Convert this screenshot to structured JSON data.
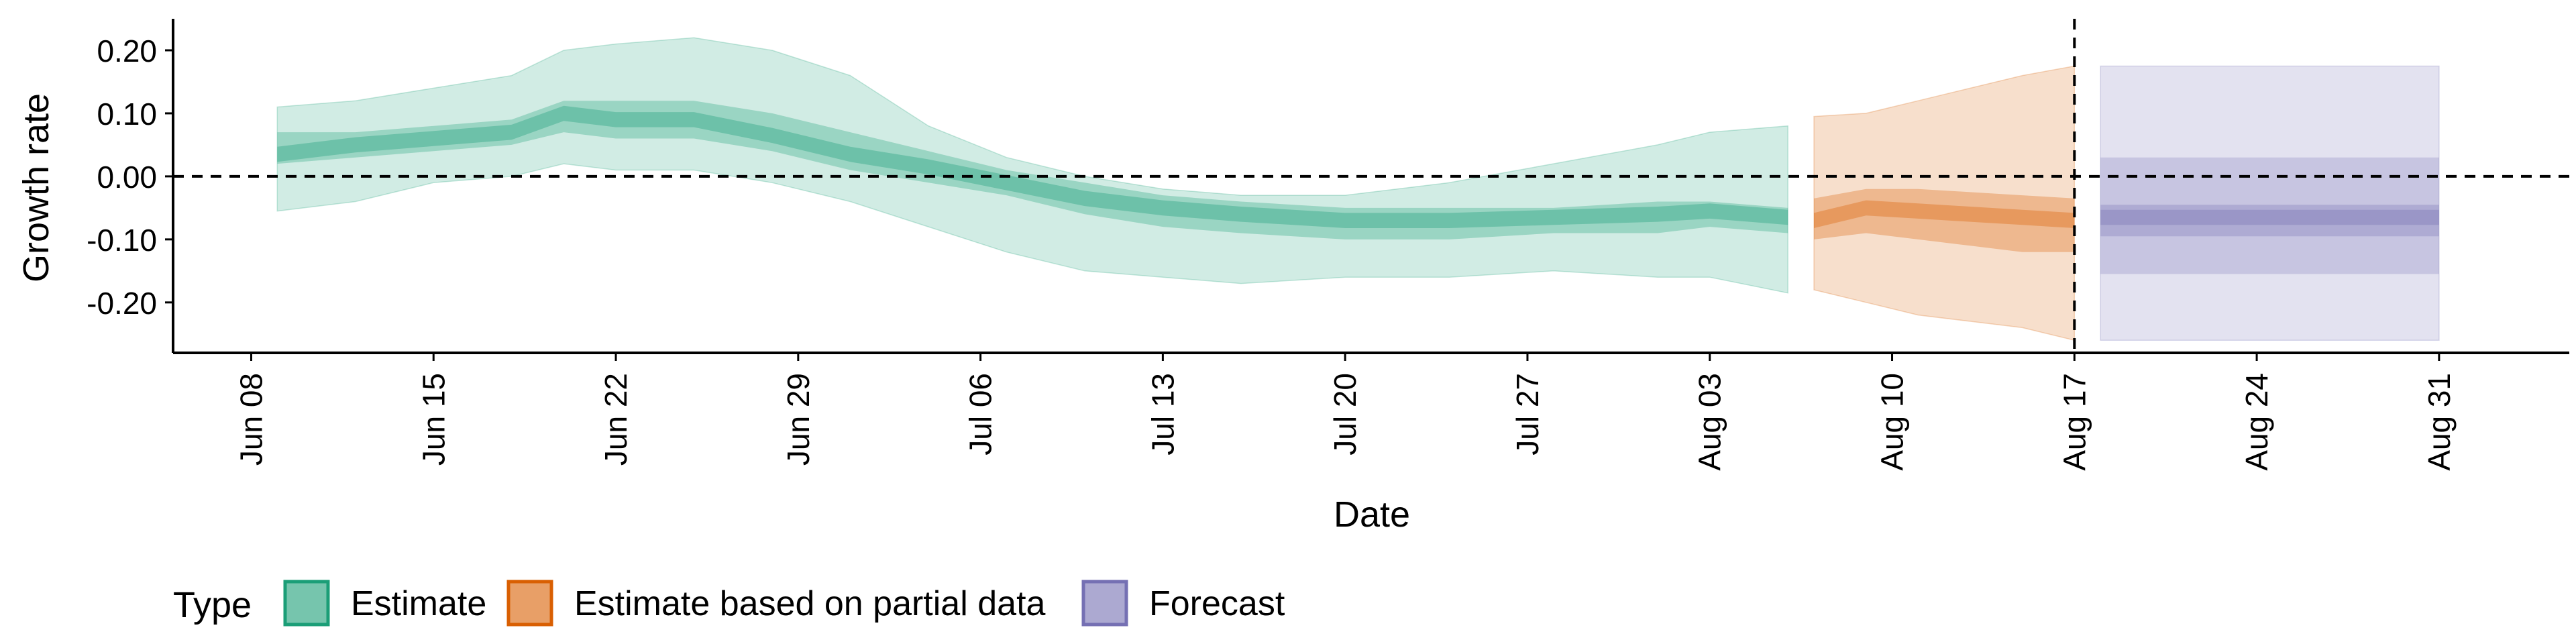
{
  "chart_data": {
    "type": "area",
    "xlabel": "Date",
    "ylabel": "Growth rate",
    "x_ticks": [
      "2020-06-08",
      "2020-06-15",
      "2020-06-22",
      "2020-06-29",
      "2020-07-06",
      "2020-07-13",
      "2020-07-20",
      "2020-07-27",
      "2020-08-03",
      "2020-08-10",
      "2020-08-17",
      "2020-08-24",
      "2020-08-31"
    ],
    "x_tick_labels": [
      "Jun 08",
      "Jun 15",
      "Jun 22",
      "Jun 29",
      "Jul 06",
      "Jul 13",
      "Jul 20",
      "Jul 27",
      "Aug 03",
      "Aug 10",
      "Aug 17",
      "Aug 24",
      "Aug 31"
    ],
    "xlim": [
      "2020-06-05",
      "2020-09-05"
    ],
    "y_ticks": [
      -0.2,
      -0.1,
      0.0,
      0.1,
      0.2
    ],
    "y_tick_labels": [
      "-0.20",
      "-0.10",
      "0.00",
      "0.10",
      "0.20"
    ],
    "ylim": [
      -0.28,
      0.25
    ],
    "hline": 0.0,
    "vline": "2020-08-17",
    "legend": {
      "title": "Type",
      "position": "bottom-left",
      "items": [
        {
          "label": "Estimate",
          "color": "#1b9e77"
        },
        {
          "label": "Estimate based on partial data",
          "color": "#d95f02"
        },
        {
          "label": "Forecast",
          "color": "#7570b3"
        }
      ]
    },
    "series": [
      {
        "name": "Estimate",
        "color": "#1b9e77",
        "x": [
          "2020-06-09",
          "2020-06-12",
          "2020-06-15",
          "2020-06-18",
          "2020-06-20",
          "2020-06-22",
          "2020-06-25",
          "2020-06-28",
          "2020-07-01",
          "2020-07-04",
          "2020-07-07",
          "2020-07-10",
          "2020-07-13",
          "2020-07-16",
          "2020-07-20",
          "2020-07-24",
          "2020-07-28",
          "2020-08-01",
          "2020-08-03",
          "2020-08-06"
        ],
        "median": [
          0.035,
          0.05,
          0.06,
          0.07,
          0.1,
          0.09,
          0.09,
          0.065,
          0.035,
          0.015,
          -0.01,
          -0.035,
          -0.05,
          -0.06,
          -0.07,
          -0.07,
          -0.065,
          -0.06,
          -0.055,
          -0.065
        ],
        "ci50": [
          [
            0.02,
            0.07
          ],
          [
            0.03,
            0.07
          ],
          [
            0.04,
            0.08
          ],
          [
            0.05,
            0.09
          ],
          [
            0.07,
            0.12
          ],
          [
            0.06,
            0.12
          ],
          [
            0.06,
            0.12
          ],
          [
            0.04,
            0.1
          ],
          [
            0.01,
            0.07
          ],
          [
            -0.01,
            0.04
          ],
          [
            -0.03,
            0.01
          ],
          [
            -0.06,
            -0.01
          ],
          [
            -0.08,
            -0.03
          ],
          [
            -0.09,
            -0.04
          ],
          [
            -0.1,
            -0.05
          ],
          [
            -0.1,
            -0.05
          ],
          [
            -0.09,
            -0.05
          ],
          [
            -0.09,
            -0.04
          ],
          [
            -0.08,
            -0.04
          ],
          [
            -0.09,
            -0.05
          ]
        ],
        "ci90": [
          [
            -0.055,
            0.11
          ],
          [
            -0.04,
            0.12
          ],
          [
            -0.01,
            0.14
          ],
          [
            0.0,
            0.16
          ],
          [
            0.02,
            0.2
          ],
          [
            0.01,
            0.21
          ],
          [
            0.01,
            0.22
          ],
          [
            -0.01,
            0.2
          ],
          [
            -0.04,
            0.16
          ],
          [
            -0.08,
            0.08
          ],
          [
            -0.12,
            0.03
          ],
          [
            -0.15,
            0.0
          ],
          [
            -0.16,
            -0.02
          ],
          [
            -0.17,
            -0.03
          ],
          [
            -0.16,
            -0.03
          ],
          [
            -0.16,
            -0.01
          ],
          [
            -0.15,
            0.02
          ],
          [
            -0.16,
            0.05
          ],
          [
            -0.16,
            0.07
          ],
          [
            -0.185,
            0.08
          ]
        ]
      },
      {
        "name": "Estimate based on partial data",
        "color": "#d95f02",
        "x": [
          "2020-08-07",
          "2020-08-09",
          "2020-08-11",
          "2020-08-13",
          "2020-08-15",
          "2020-08-17"
        ],
        "median": [
          -0.07,
          -0.05,
          -0.055,
          -0.06,
          -0.065,
          -0.07
        ],
        "ci50": [
          [
            -0.1,
            -0.035
          ],
          [
            -0.09,
            -0.02
          ],
          [
            -0.1,
            -0.02
          ],
          [
            -0.11,
            -0.025
          ],
          [
            -0.12,
            -0.03
          ],
          [
            -0.12,
            -0.035
          ]
        ],
        "ci90": [
          [
            -0.18,
            0.095
          ],
          [
            -0.2,
            0.1
          ],
          [
            -0.22,
            0.12
          ],
          [
            -0.23,
            0.14
          ],
          [
            -0.24,
            0.16
          ],
          [
            -0.26,
            0.175
          ]
        ]
      },
      {
        "name": "Forecast",
        "color": "#7570b3",
        "x": [
          "2020-08-18",
          "2020-08-31"
        ],
        "median": [
          -0.065,
          -0.065
        ],
        "ci50": [
          [
            -0.095,
            -0.045
          ],
          [
            -0.095,
            -0.045
          ]
        ],
        "ci75": [
          [
            -0.155,
            0.03
          ],
          [
            -0.155,
            0.03
          ]
        ],
        "ci90": [
          [
            -0.26,
            0.175
          ],
          [
            -0.26,
            0.175
          ]
        ]
      }
    ]
  }
}
